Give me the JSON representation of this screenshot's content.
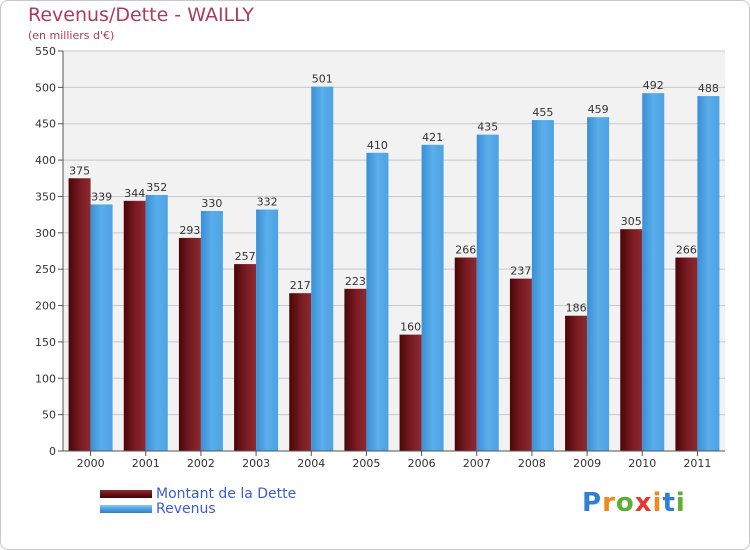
{
  "header": {
    "title": "Revenus/Dette - WAILLY",
    "subtitle": "(en milliers d'€)"
  },
  "colors": {
    "dette": "#6e1418",
    "revenus": "#4ea4e6",
    "title": "#b03a5b",
    "legend_text": "#3b5bdb",
    "grid": "#c8c8c8",
    "plot_bg": "#f2f2f2"
  },
  "chart_data": {
    "type": "bar",
    "categories": [
      "2000",
      "2001",
      "2002",
      "2003",
      "2004",
      "2005",
      "2006",
      "2007",
      "2008",
      "2009",
      "2010",
      "2011"
    ],
    "series": [
      {
        "name": "Montant de la Dette",
        "values": [
          375,
          344,
          293,
          257,
          217,
          223,
          160,
          266,
          237,
          186,
          305,
          266
        ]
      },
      {
        "name": "Revenus",
        "values": [
          339,
          352,
          330,
          332,
          501,
          410,
          421,
          435,
          455,
          459,
          492,
          488
        ]
      }
    ],
    "yticks": [
      0,
      50,
      100,
      150,
      200,
      250,
      300,
      350,
      400,
      450,
      500,
      550
    ],
    "ylim": [
      0,
      550
    ],
    "grid": true,
    "legend_position": "bottom-left"
  },
  "legend": {
    "dette_label": "Montant de la Dette",
    "revenus_label": "Revenus"
  },
  "logo": {
    "text": "Proxiti",
    "letter_colors": [
      "#2f7fd6",
      "#f08a1c",
      "#5fae34",
      "#e23a2e",
      "#f08a1c",
      "#2f7fd6",
      "#5fae34"
    ]
  }
}
